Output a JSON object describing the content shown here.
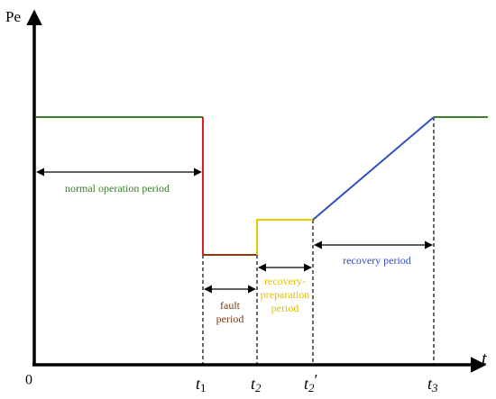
{
  "axes": {
    "y_label": "Pe",
    "x_label": "t",
    "origin": "0"
  },
  "time_marks": [
    {
      "symbol": "t",
      "subscript": "1"
    },
    {
      "symbol": "t",
      "subscript": "2"
    },
    {
      "symbol": "t",
      "subscript": "2",
      "suffix": "′"
    },
    {
      "symbol": "t",
      "subscript": "3"
    }
  ],
  "periods": [
    {
      "lines": [
        "normal operation period"
      ]
    },
    {
      "lines": [
        "fault",
        "period"
      ]
    },
    {
      "lines": [
        "recovery-",
        "preparation",
        "period"
      ]
    },
    {
      "lines": [
        "recovery period"
      ]
    }
  ]
}
